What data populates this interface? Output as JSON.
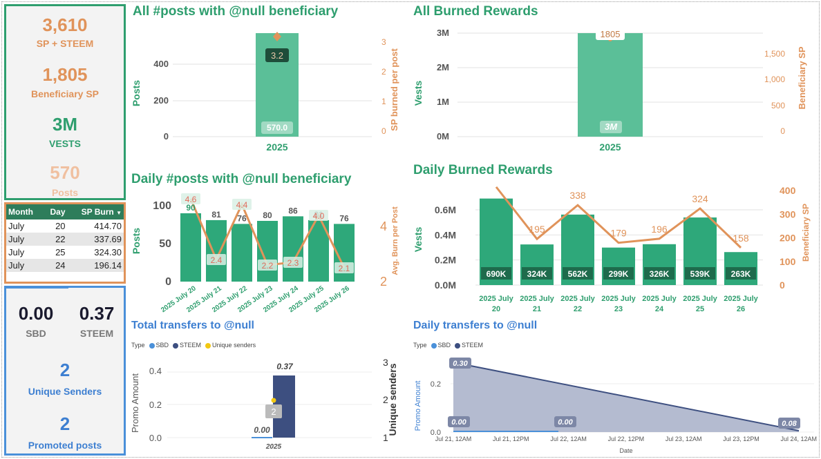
{
  "kpi_top": {
    "sp_steem_value": "3,610",
    "sp_steem_label": "SP + STEEM",
    "beneficiary_value": "1,805",
    "beneficiary_label": "Beneficiary SP",
    "vests_value": "3M",
    "vests_label": "VESTS",
    "posts_value": "570",
    "posts_label": "Posts"
  },
  "burn_table": {
    "headers": [
      "Month",
      "Day",
      "SP Burn"
    ],
    "rows": [
      {
        "month": "July",
        "day": "20",
        "burn": "414.70"
      },
      {
        "month": "July",
        "day": "22",
        "burn": "337.69"
      },
      {
        "month": "July",
        "day": "25",
        "burn": "324.30"
      },
      {
        "month": "July",
        "day": "24",
        "burn": "196.14"
      }
    ]
  },
  "kpi_bottom": {
    "sbd_value": "0.00",
    "sbd_label": "SBD",
    "steem_value": "0.37",
    "steem_label": "STEEM",
    "senders_value": "2",
    "senders_label": "Unique Senders",
    "promoted_value": "2",
    "promoted_label": "Promoted posts"
  },
  "charts": {
    "all_posts": {
      "title": "All #posts with @null beneficiary",
      "ylabel": "Posts",
      "y2label": "SP burned per post",
      "category": "2025",
      "bar_label": "570.0",
      "line_label": "3.2",
      "yticks": [
        "0",
        "200",
        "400"
      ],
      "y2ticks": [
        "0",
        "1",
        "2",
        "3"
      ]
    },
    "all_burned": {
      "title": "All Burned Rewards",
      "ylabel": "Vests",
      "y2label": "Beneficiary SP",
      "category": "2025",
      "bar_label": "3M",
      "line_label": "1805",
      "yticks": [
        "0M",
        "1M",
        "2M",
        "3M"
      ],
      "y2ticks": [
        "0",
        "500",
        "1,000",
        "1,500"
      ]
    },
    "daily_posts": {
      "title": "Daily #posts with @null beneficiary",
      "ylabel": "Posts",
      "y2label": "Avg. Burn per Post",
      "yticks": [
        "0",
        "50",
        "100"
      ],
      "y2ticks": [
        "2",
        "4"
      ],
      "categories": [
        "2025 July 20",
        "2025 July 21",
        "2025 July 22",
        "2025 July 23",
        "2025 July 24",
        "2025 July 25",
        "2025 July 26"
      ],
      "bar_labels": [
        "90",
        "81",
        "76",
        "80",
        "86",
        "81",
        "76"
      ],
      "line_labels": [
        "4.6",
        "2.4",
        "4.4",
        "2.2",
        "2.3",
        "4.0",
        "2.1"
      ]
    },
    "daily_burned": {
      "title": "Daily Burned Rewards",
      "ylabel": "Vests",
      "y2label": "Beneficiary SP",
      "yticks": [
        "0.0M",
        "0.2M",
        "0.4M",
        "0.6M"
      ],
      "y2ticks": [
        "0",
        "100",
        "200",
        "300",
        "400"
      ],
      "categories": [
        [
          "2025 July",
          "20"
        ],
        [
          "2025 July",
          "21"
        ],
        [
          "2025 July",
          "22"
        ],
        [
          "2025 July",
          "23"
        ],
        [
          "2025 July",
          "24"
        ],
        [
          "2025 July",
          "25"
        ],
        [
          "2025 July",
          "26"
        ]
      ],
      "bar_labels": [
        "690K",
        "324K",
        "562K",
        "299K",
        "326K",
        "539K",
        "263K"
      ],
      "line_labels": [
        "415",
        "195",
        "338",
        "179",
        "196",
        "324",
        "158"
      ]
    },
    "total_transfers": {
      "title": "Total transfers to @null",
      "legend_title": "Type",
      "legend": [
        "SBD",
        "STEEM",
        "Unique senders"
      ],
      "ylabel": "Promo Amount",
      "y2label": "Unique senders",
      "yticks": [
        "0.0",
        "0.2",
        "0.4"
      ],
      "y2ticks": [
        "1",
        "2",
        "3"
      ],
      "category": "2025",
      "sbd_label": "0.00",
      "steem_label": "0.37",
      "senders_label": "2"
    },
    "daily_transfers": {
      "title": "Daily transfers to @null",
      "legend_title": "Type",
      "legend": [
        "SBD",
        "STEEM"
      ],
      "ylabel": "Promo Amount",
      "xlabel": "Date",
      "yticks": [
        "0.0",
        "0.2"
      ],
      "xticks": [
        "Jul 21, 12AM",
        "Jul 21, 12PM",
        "Jul 22, 12AM",
        "Jul 22, 12PM",
        "Jul 23, 12AM",
        "Jul 23, 12PM",
        "Jul 24, 12AM"
      ],
      "labels": [
        "0.30",
        "0.00",
        "0.00",
        "0.08"
      ]
    }
  },
  "chart_data": [
    {
      "type": "bar",
      "title": "All #posts with @null beneficiary",
      "categories": [
        "2025"
      ],
      "series": [
        {
          "name": "Posts",
          "values": [
            570
          ]
        },
        {
          "name": "SP burned per post",
          "values": [
            3.2
          ]
        }
      ],
      "ylabel": "Posts",
      "ylim": [
        0,
        570
      ]
    },
    {
      "type": "bar",
      "title": "All Burned Rewards",
      "categories": [
        "2025"
      ],
      "series": [
        {
          "name": "Vests",
          "values": [
            3000000
          ]
        },
        {
          "name": "Beneficiary SP",
          "values": [
            1805
          ]
        }
      ],
      "ylabel": "Vests",
      "ylim": [
        0,
        3000000
      ]
    },
    {
      "type": "bar",
      "title": "Daily #posts with @null beneficiary",
      "categories": [
        "2025 July 20",
        "2025 July 21",
        "2025 July 22",
        "2025 July 23",
        "2025 July 24",
        "2025 July 25",
        "2025 July 26"
      ],
      "series": [
        {
          "name": "Posts",
          "values": [
            90,
            81,
            76,
            80,
            86,
            81,
            76
          ]
        },
        {
          "name": "Avg. Burn per Post",
          "values": [
            4.6,
            2.4,
            4.4,
            2.2,
            2.3,
            4.0,
            2.1
          ]
        }
      ],
      "ylabel": "Posts"
    },
    {
      "type": "bar",
      "title": "Daily Burned Rewards",
      "categories": [
        "2025 July 20",
        "2025 July 21",
        "2025 July 22",
        "2025 July 23",
        "2025 July 24",
        "2025 July 25",
        "2025 July 26"
      ],
      "series": [
        {
          "name": "Vests",
          "values": [
            690000,
            324000,
            562000,
            299000,
            326000,
            539000,
            263000
          ]
        },
        {
          "name": "Beneficiary SP",
          "values": [
            415,
            195,
            338,
            179,
            196,
            324,
            158
          ]
        }
      ],
      "ylabel": "Vests"
    },
    {
      "type": "bar",
      "title": "Total transfers to @null",
      "categories": [
        "2025"
      ],
      "series": [
        {
          "name": "SBD",
          "values": [
            0.0
          ]
        },
        {
          "name": "STEEM",
          "values": [
            0.37
          ]
        },
        {
          "name": "Unique senders",
          "values": [
            2
          ]
        }
      ],
      "ylabel": "Promo Amount"
    },
    {
      "type": "area",
      "title": "Daily transfers to @null",
      "x": [
        "Jul 21, 12AM",
        "Jul 24, 12AM"
      ],
      "series": [
        {
          "name": "SBD",
          "values": [
            0.0,
            0.0
          ]
        },
        {
          "name": "STEEM",
          "values": [
            0.3,
            0.08
          ]
        }
      ],
      "xlabel": "Date",
      "ylabel": "Promo Amount"
    }
  ]
}
